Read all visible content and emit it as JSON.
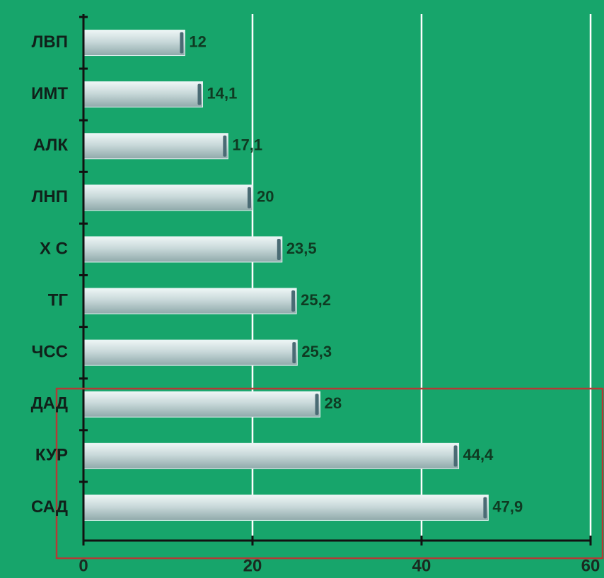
{
  "chart_data": {
    "type": "bar",
    "orientation": "horizontal",
    "categories": [
      "ЛВП",
      "ИМТ",
      "АЛК",
      "ЛНП",
      "Х С",
      "ТГ",
      "ЧСС",
      "ДАД",
      "КУР",
      "САД"
    ],
    "values": [
      12,
      14.1,
      17.1,
      20,
      23.5,
      25.2,
      25.3,
      28,
      44.4,
      47.9
    ],
    "value_labels": [
      "12",
      "14,1",
      "17,1",
      "20",
      "23,5",
      "25,2",
      "25,3",
      "28",
      "44,4",
      "47,9"
    ],
    "color": "#c9dcdc",
    "xlim": [
      0,
      60
    ],
    "xticks": [
      0,
      20,
      40,
      60
    ],
    "grid": true
  }
}
